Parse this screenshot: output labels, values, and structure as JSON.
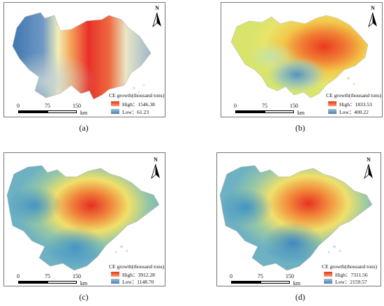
{
  "panels": [
    {
      "id": "a",
      "caption": "(a)",
      "north": "N",
      "legend_title": "CE growth(thousand tons)",
      "high_label": "High：1546.38",
      "low_label": "Low：61.23",
      "scale_ticks": [
        "0",
        "75",
        "150"
      ],
      "scale_unit": "km",
      "high_color": "#e8302a",
      "low_color": "#4a7fb5"
    },
    {
      "id": "b",
      "caption": "(b)",
      "north": "N",
      "legend_title": "CE growth(thousand tons)",
      "high_label": "High：1833.53",
      "low_label": "Low：400.22",
      "scale_ticks": [
        "0",
        "75",
        "150"
      ],
      "scale_unit": "km",
      "high_color": "#e8302a",
      "low_color": "#4a7fb5"
    },
    {
      "id": "c",
      "caption": "(c)",
      "north": "N",
      "legend_title": "CE growth(thousand tons)",
      "high_label": "High：3912.28",
      "low_label": "Low：1148.70",
      "scale_ticks": [
        "0",
        "75",
        "150"
      ],
      "scale_unit": "km",
      "high_color": "#e8302a",
      "low_color": "#4a7fb5"
    },
    {
      "id": "d",
      "caption": "(d)",
      "north": "N",
      "legend_title": "CE growth(thousand tons)",
      "high_label": "High：7311.56",
      "low_label": "Low：2159.57",
      "scale_ticks": [
        "0",
        "75",
        "150"
      ],
      "scale_unit": "km",
      "high_color": "#e8302a",
      "low_color": "#4a7fb5"
    }
  ]
}
